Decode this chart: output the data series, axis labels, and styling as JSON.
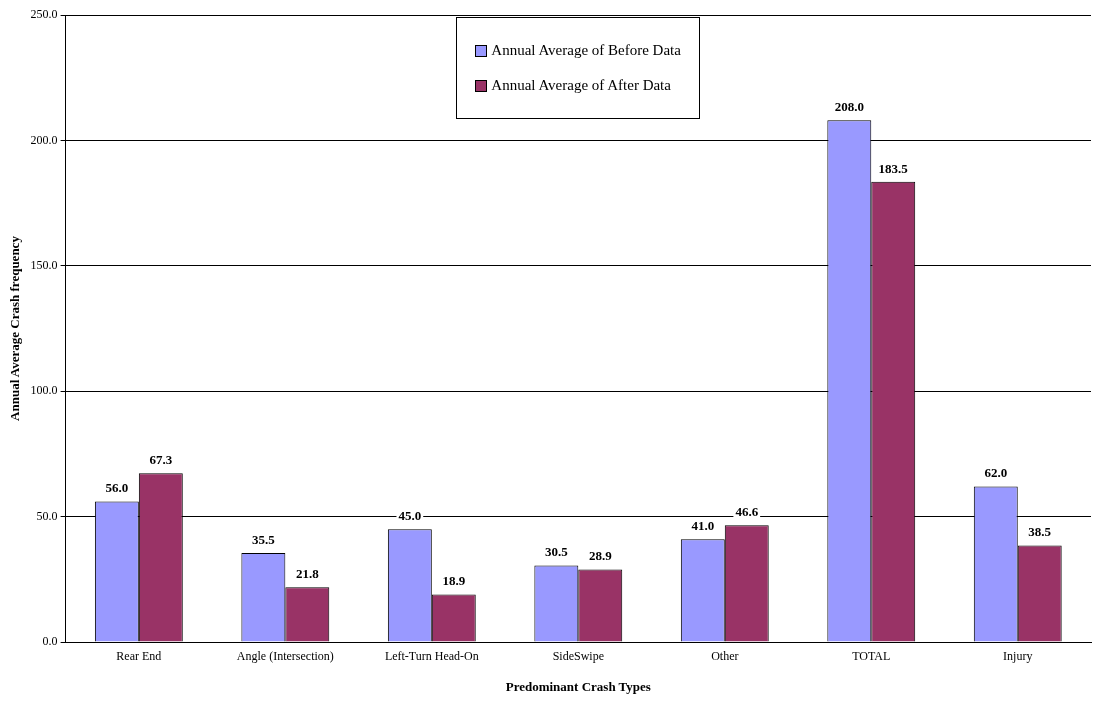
{
  "chart_data": {
    "type": "bar",
    "xlabel": "Predominant Crash Types",
    "ylabel": "Annual Average Crash frequency",
    "categories": [
      "Rear End",
      "Angle (Intersection)",
      "Left-Turn Head-On",
      "SideSwipe",
      "Other",
      "TOTAL",
      "Injury"
    ],
    "series": [
      {
        "name": "Annual Average of Before Data",
        "color": "#9999ff",
        "values": [
          56.0,
          35.5,
          45.0,
          30.5,
          41.0,
          208.0,
          62.0
        ],
        "value_labels": [
          "56.0",
          "35.5",
          "45.0",
          "30.5",
          "41.0",
          "208.0",
          "62.0"
        ]
      },
      {
        "name": "Annual Average of After Data",
        "color": "#993366",
        "values": [
          67.3,
          21.8,
          18.9,
          28.9,
          46.6,
          183.5,
          38.5
        ],
        "value_labels": [
          "67.3",
          "21.8",
          "18.9",
          "28.9",
          "46.6",
          "183.5",
          "38.5"
        ]
      }
    ],
    "ylim": [
      0,
      250
    ],
    "yticks": [
      {
        "value": 0,
        "label": "0.0"
      },
      {
        "value": 50,
        "label": "50.0"
      },
      {
        "value": 100,
        "label": "100.0"
      },
      {
        "value": 150,
        "label": "150.0"
      },
      {
        "value": 200,
        "label": "200.0"
      },
      {
        "value": 250,
        "label": "250.0"
      }
    ],
    "grid": "y",
    "legend": "top"
  }
}
